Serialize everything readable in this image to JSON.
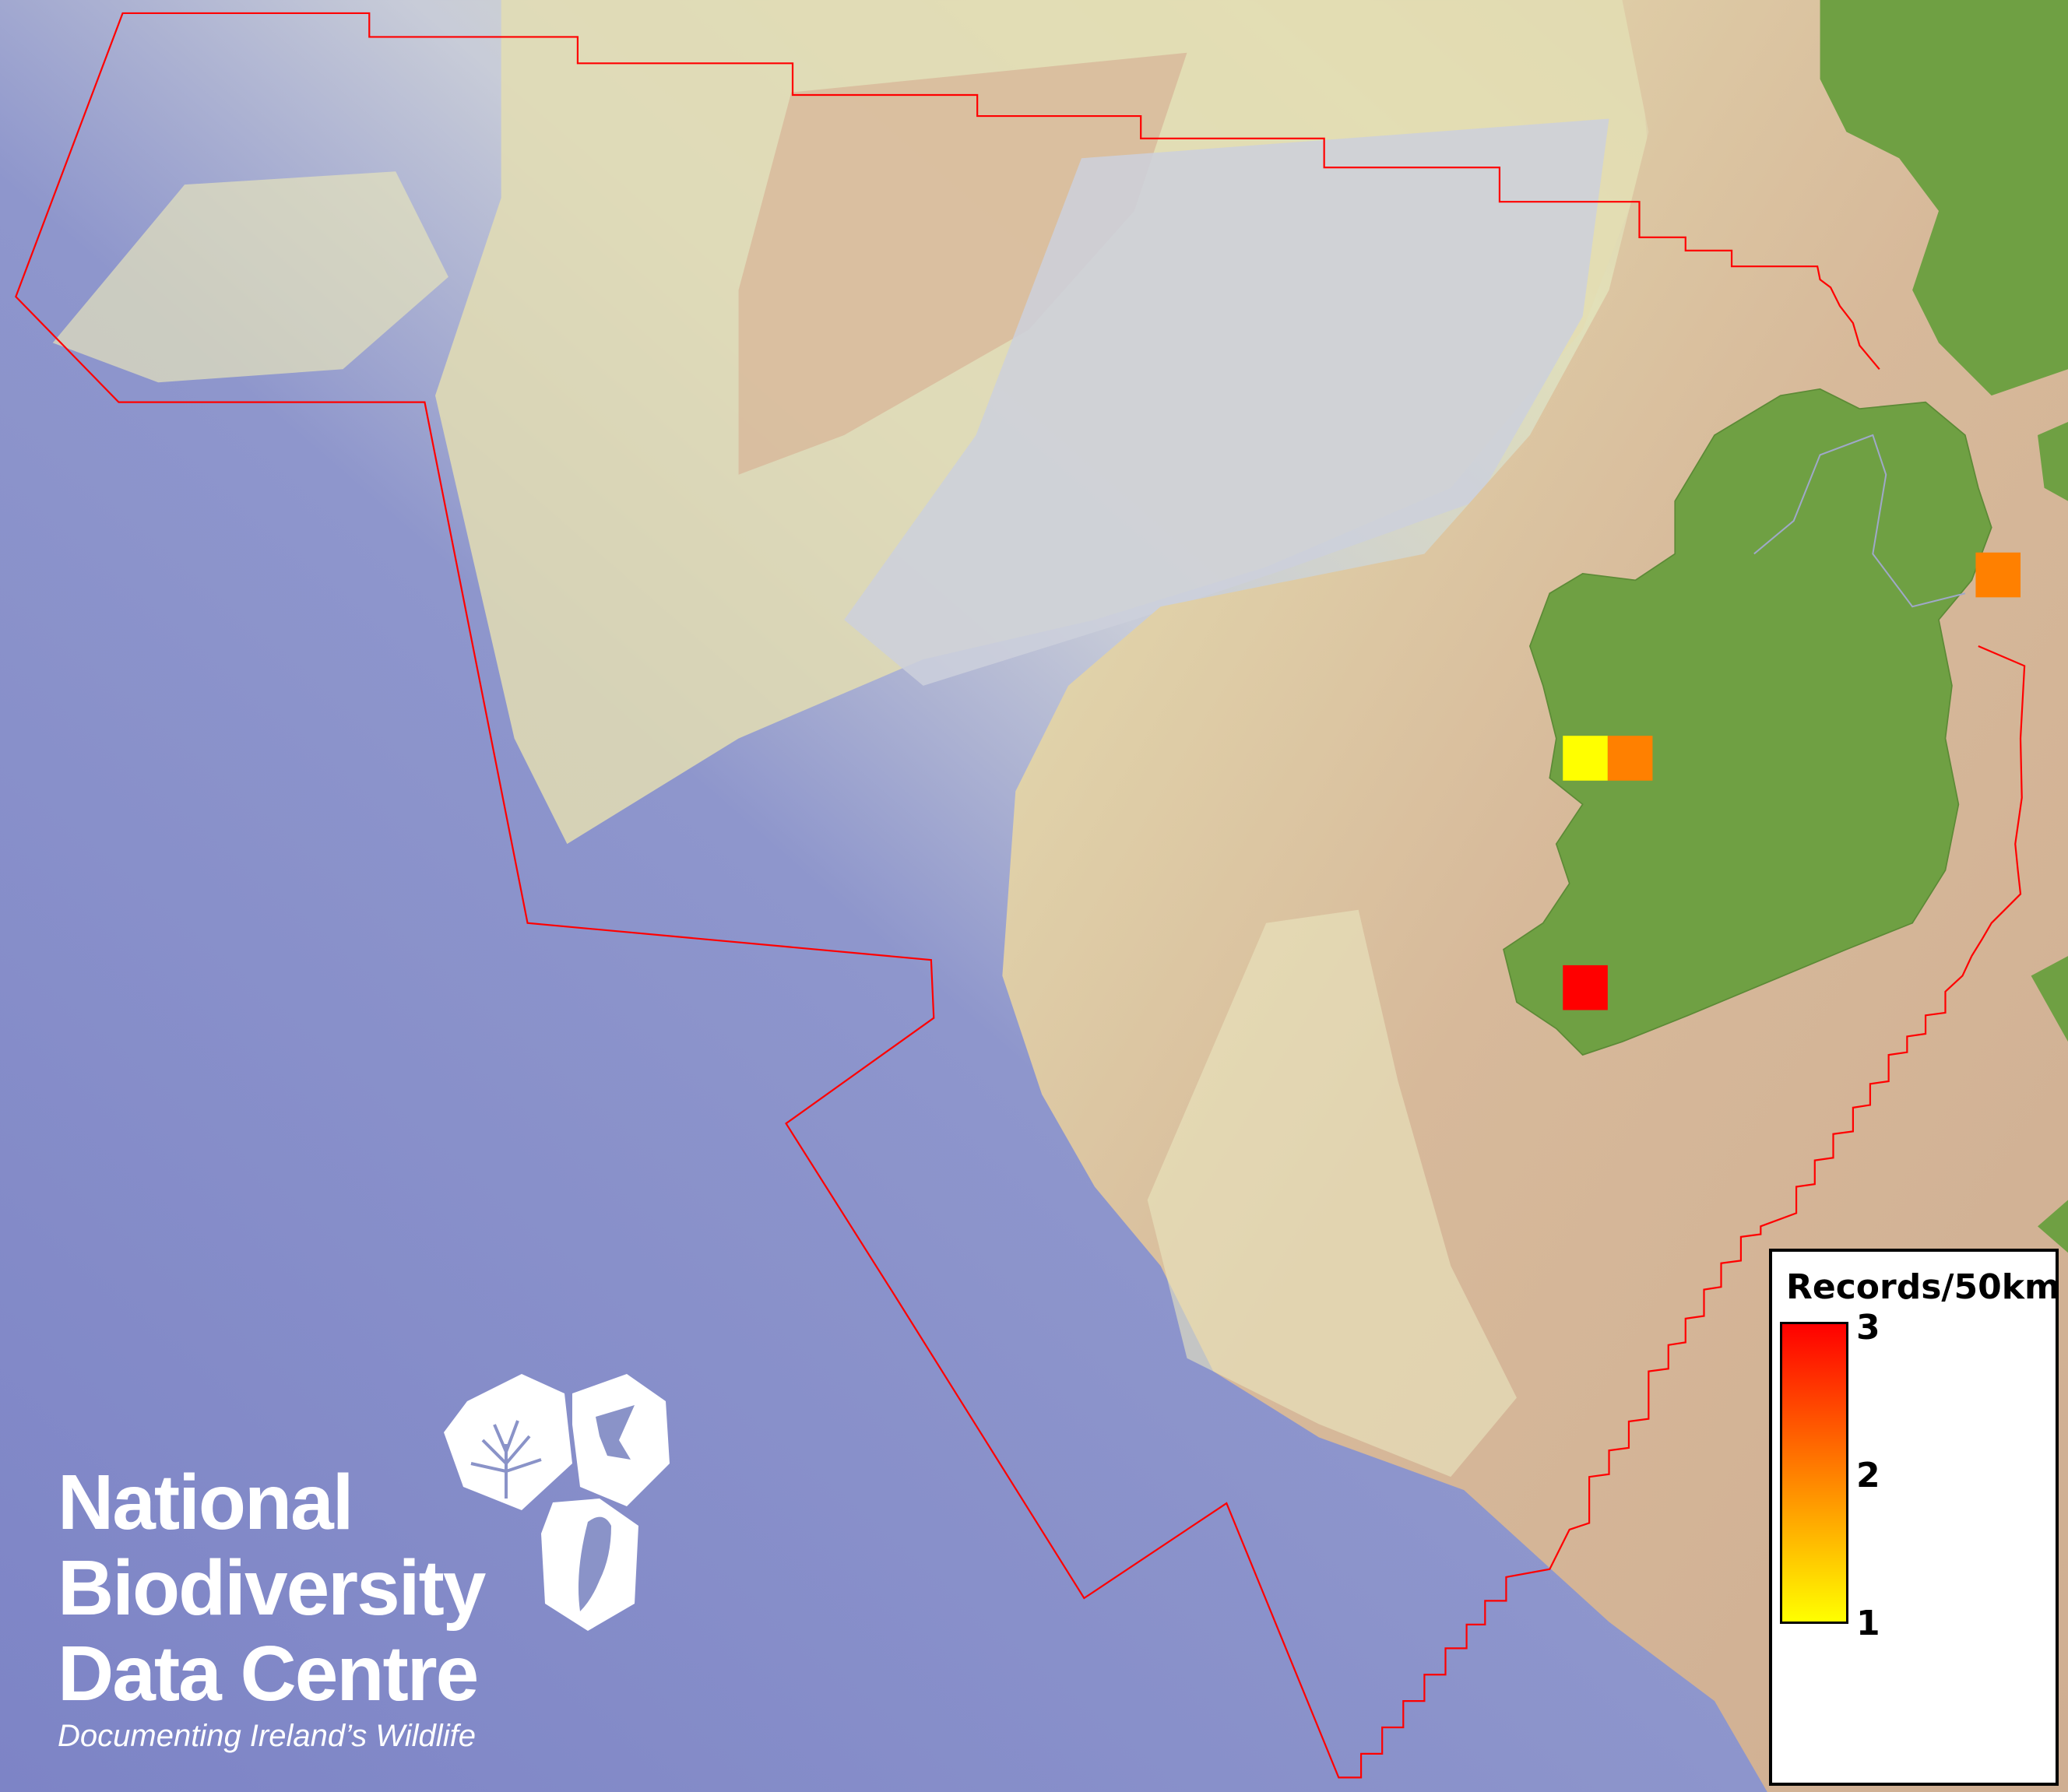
{
  "map": {
    "colors": {
      "deep_ocean": "#7f86c4",
      "shelf": "#c9cfd8",
      "shallow": "#e3e2b4",
      "land_sea_area": "#d0ad90",
      "land": "#6fa043",
      "boundary": "#ff0000"
    },
    "records": [
      {
        "value": 1,
        "color": "#ffff00"
      },
      {
        "value": 2,
        "color": "#ff8000"
      },
      {
        "value": 2,
        "color": "#ff8000"
      },
      {
        "value": 3,
        "color": "#ff0000"
      }
    ]
  },
  "legend": {
    "title": "Records/50km",
    "ticks": [
      "3",
      "2",
      "1"
    ],
    "min": 1,
    "max": 3,
    "colors": [
      "#ffff00",
      "#ff8000",
      "#ff0000"
    ]
  },
  "logo": {
    "line1": "National",
    "line2": "Biodiversity",
    "line3": "Data Centre",
    "tagline": "Documenting Ireland’s Wildlife"
  }
}
